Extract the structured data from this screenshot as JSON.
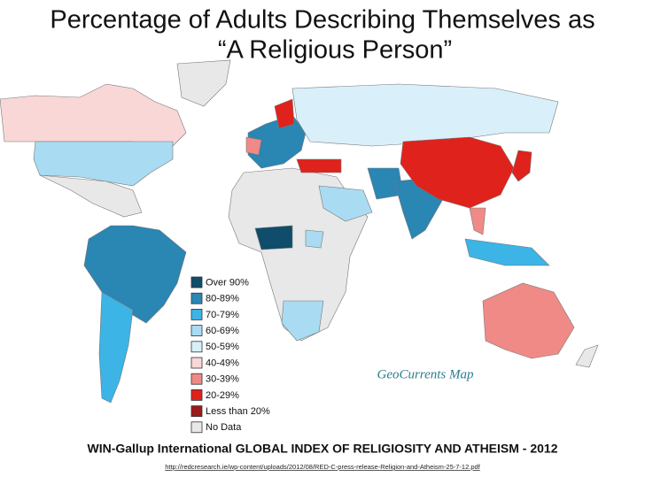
{
  "title_lines": [
    "Percentage of Adults Describing Themselves as",
    "“A Religious Person”"
  ],
  "legend": [
    {
      "label": "Over 90%",
      "color": "#0f4d6b"
    },
    {
      "label": "80-89%",
      "color": "#2a86b3"
    },
    {
      "label": "70-79%",
      "color": "#3cb4e5"
    },
    {
      "label": "60-69%",
      "color": "#a9dcf2"
    },
    {
      "label": "50-59%",
      "color": "#d9f0fa"
    },
    {
      "label": "40-49%",
      "color": "#f9d7d7"
    },
    {
      "label": "30-39%",
      "color": "#f08a87"
    },
    {
      "label": "20-29%",
      "color": "#e0221c"
    },
    {
      "label": "Less than 20%",
      "color": "#9c1a1a"
    },
    {
      "label": "No Data",
      "color": "#e8e8e8"
    }
  ],
  "watermark": "GeoCurrents Map",
  "footer": "WIN-Gallup International GLOBAL INDEX OF RELIGIOSITY AND ATHEISM - 2012",
  "source_url": "http://redcresearch.ie/wp-content/uploads/2012/08/RED-C-press-release-Religion-and-Atheism-25-7-12.pdf"
}
